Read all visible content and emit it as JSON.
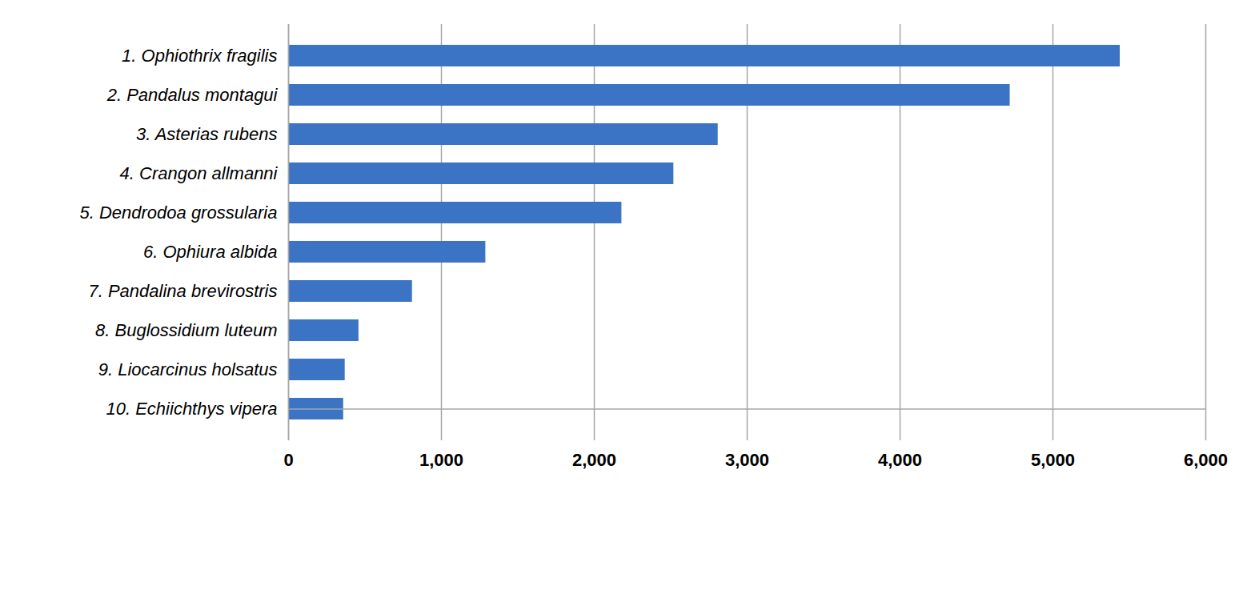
{
  "chart_data": {
    "type": "bar",
    "orientation": "horizontal",
    "categories": [
      "1. Ophiothrix fragilis",
      "2. Pandalus montagui",
      "3. Asterias rubens",
      "4. Crangon allmanni",
      "5. Dendrodoa grossularia",
      "6. Ophiura albida",
      "7. Pandalina brevirostris",
      "8. Buglossidium luteum",
      "9. Liocarcinus holsatus",
      "10. Echiichthys vipera"
    ],
    "values": [
      5440,
      4720,
      2810,
      2520,
      2180,
      1290,
      810,
      460,
      370,
      360
    ],
    "color": "#3b73c5",
    "xlim": [
      0,
      6000
    ],
    "xticks": [
      0,
      1000,
      2000,
      3000,
      4000,
      5000,
      6000
    ],
    "grid": true
  }
}
